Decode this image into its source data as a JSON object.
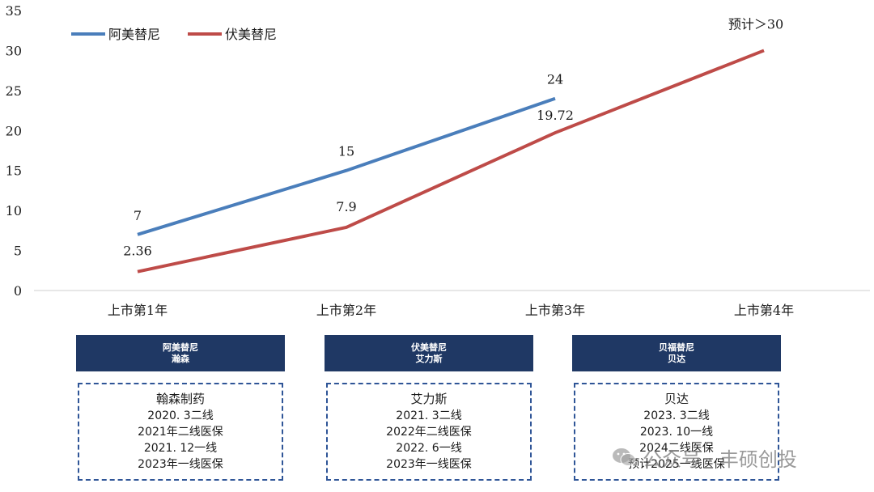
{
  "chart_data": {
    "type": "line",
    "categories": [
      "上市第1年",
      "上市第2年",
      "上市第3年",
      "上市第4年"
    ],
    "ylim": [
      0,
      35
    ],
    "yticks": [
      0,
      5,
      10,
      15,
      20,
      25,
      30,
      35
    ],
    "grid": false,
    "legend": "top-left",
    "series": [
      {
        "name": "阿美替尼",
        "color": "#4a7ebb",
        "values": [
          7,
          15,
          24,
          null
        ],
        "labels": [
          "7",
          "15",
          "24",
          ""
        ]
      },
      {
        "name": "伏美替尼",
        "color": "#be4b48",
        "values": [
          2.36,
          7.9,
          19.72,
          30
        ],
        "labels": [
          "2.36",
          "7.9",
          "19.72",
          "预计＞30"
        ]
      }
    ]
  },
  "cards": [
    {
      "header_line1": "阿美替尼",
      "header_line2": "瀚森",
      "company": "翰森制药",
      "lines": [
        "2020. 3二线",
        "2021年二线医保",
        "2021. 12一线",
        "2023年一线医保"
      ]
    },
    {
      "header_line1": "伏美替尼",
      "header_line2": "艾力斯",
      "company": "艾力斯",
      "lines": [
        "2021. 3二线",
        "2022年二线医保",
        "2022. 6一线",
        "2023年一线医保"
      ]
    },
    {
      "header_line1": "贝福替尼",
      "header_line2": "贝达",
      "company": "贝达",
      "lines": [
        "2023. 3二线",
        "2023. 10一线",
        "2024二线医保",
        "预计2025一线医保"
      ]
    }
  ],
  "watermark": {
    "text": "公众号 · 丰硕创投",
    "icon": "wechat-icon"
  }
}
